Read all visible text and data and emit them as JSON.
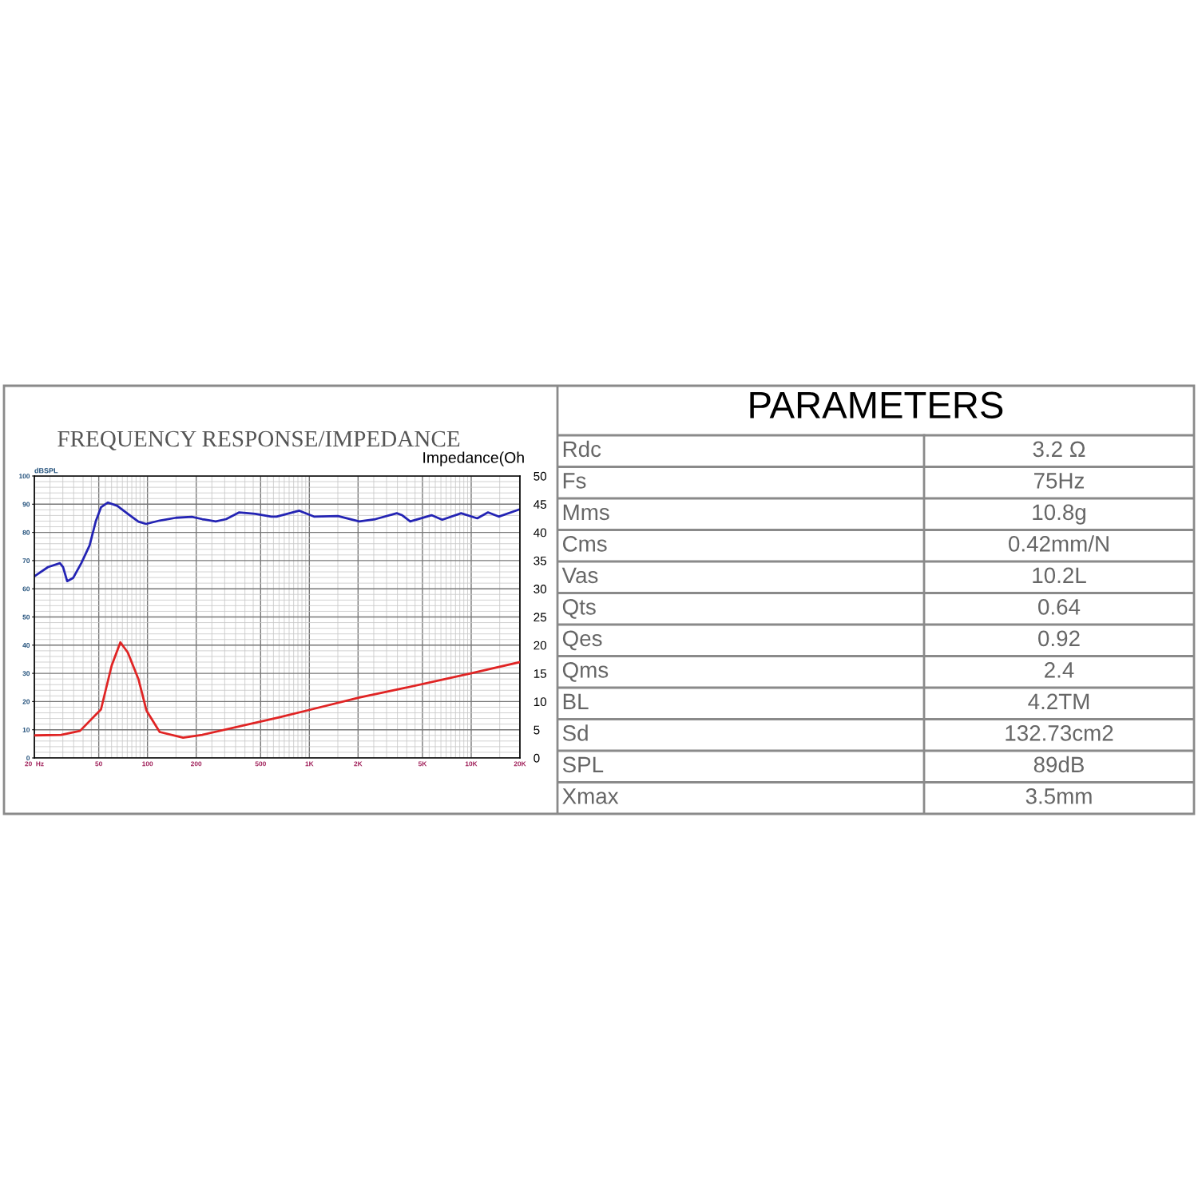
{
  "chart_data": [
    {
      "type": "line",
      "title": "FREQUENCY RESPONSE/IMPEDANCE",
      "ylabel": "dBSPL",
      "y2label": "Impedance(Oh",
      "log": "x",
      "grid": true,
      "marker": "none",
      "line_style": "solid",
      "xlim": [
        20,
        20000
      ],
      "xticks": [
        {
          "value": 20,
          "label": "20  Hz"
        },
        50,
        100,
        200,
        500,
        {
          "value": 1000,
          "label": "1K"
        },
        {
          "value": 2000,
          "label": "2K"
        },
        {
          "value": 5000,
          "label": "5K"
        },
        {
          "value": 10000,
          "label": "10K"
        },
        {
          "value": 20000,
          "label": "20K"
        }
      ],
      "ylim": [
        0,
        100
      ],
      "yticks": [
        0,
        10,
        20,
        30,
        40,
        50,
        60,
        70,
        80,
        90,
        100
      ],
      "y2lim": [
        0,
        50
      ],
      "y2ticks": [
        0,
        5,
        10,
        15,
        20,
        25,
        30,
        35,
        40,
        45,
        50
      ],
      "series": [
        {
          "color": "#2424b4",
          "x": [
            20,
            24.3,
            28.8,
            30.1,
            31.9,
            34.8,
            39.0,
            43.9,
            47.9,
            51.6,
            57.0,
            65.1,
            75.6,
            87.9,
            98.1,
            119,
            150,
            188,
            218,
            264,
            306,
            369,
            464,
            582,
            627,
            867,
            1068,
            1502,
            2034,
            2558,
            3468,
            3742,
            4197,
            5687,
            6620,
            8664,
            10900,
            12700,
            14790,
            20000
          ],
          "values": [
            64.4,
            67.7,
            69.1,
            67.7,
            62.7,
            63.9,
            69.1,
            75.4,
            83.9,
            88.9,
            90.6,
            89.4,
            86.6,
            83.8,
            83.0,
            84.2,
            85.2,
            85.5,
            84.7,
            83.9,
            84.7,
            87.1,
            86.6,
            85.6,
            85.6,
            87.7,
            85.6,
            85.8,
            83.9,
            84.7,
            86.8,
            86.1,
            83.9,
            86.1,
            84.5,
            86.8,
            85.0,
            87.1,
            85.6,
            88.2
          ]
        },
        {
          "color": "#e02424",
          "axis": "y2",
          "x": [
            20,
            29.3,
            38.3,
            51.6,
            60.1,
            68.0,
            75.6,
            87.9,
            98.6,
            119,
            166,
            218,
            652,
            995,
            2034,
            3870,
            9940,
            20000
          ],
          "values": [
            4.0,
            4.1,
            4.8,
            8.6,
            16.4,
            20.5,
            18.7,
            14.0,
            8.4,
            4.6,
            3.6,
            4.1,
            7.2,
            8.5,
            10.7,
            12.4,
            15.0,
            17.0
          ]
        }
      ]
    },
    {
      "type": "other",
      "title": "PARAMETERS",
      "categories": [
        "Rdc",
        "Fs",
        "Mms",
        "Cms",
        "Vas",
        "Qts",
        "Qes",
        "Qms",
        "BL",
        "Sd",
        "SPL",
        "Xmax"
      ],
      "value_labels": [
        "3.2 Ω",
        "75Hz",
        "10.8g",
        "0.42mm/N",
        "10.2L",
        "0.64",
        "0.92",
        "2.4",
        "4.2TM",
        "132.73cm2",
        "89dB",
        "3.5mm"
      ]
    }
  ]
}
